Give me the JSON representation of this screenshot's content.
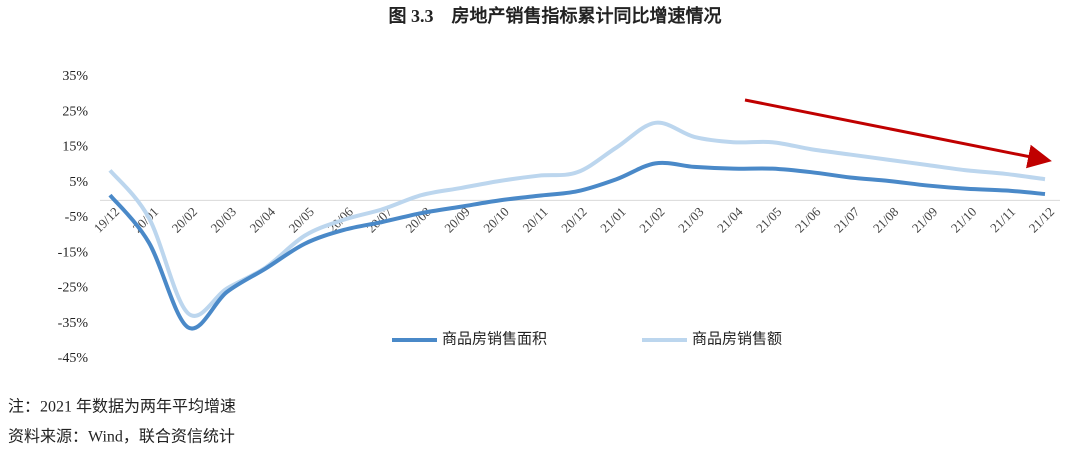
{
  "chart_data": {
    "type": "line",
    "title": "图 3.3　房地产销售指标累计同比增速情况",
    "categories": [
      "19/12",
      "20/01",
      "20/02",
      "20/03",
      "20/04",
      "20/05",
      "20/06",
      "20/07",
      "20/08",
      "20/09",
      "20/10",
      "20/11",
      "20/12",
      "21/01",
      "21/02",
      "21/03",
      "21/04",
      "21/05",
      "21/06",
      "21/07",
      "21/08",
      "21/09",
      "21/10",
      "21/11",
      "21/12"
    ],
    "series": [
      {
        "name": "商品房销售面积",
        "color": "#4a89c8",
        "values": [
          1.5,
          -12,
          -36,
          -26,
          -19.3,
          -12.3,
          -8.4,
          -6.1,
          -3.6,
          -1.8,
          0,
          1.3,
          2.6,
          6,
          10.5,
          9.5,
          9,
          9,
          8,
          6.5,
          5.5,
          4.2,
          3.3,
          2.8,
          1.8
        ]
      },
      {
        "name": "商品房销售额",
        "color": "#bcd6ee",
        "values": [
          8.5,
          -5,
          -32,
          -25,
          -19,
          -10,
          -5.5,
          -2.5,
          1.5,
          3.5,
          5.5,
          7,
          8,
          15,
          22,
          18,
          16.5,
          16.5,
          14.5,
          13,
          11.5,
          10,
          8.5,
          7.5,
          6
        ]
      }
    ],
    "ylim": [
      -45,
      35
    ],
    "yticks": [
      {
        "value": -45,
        "label": "-45%"
      },
      {
        "value": -35,
        "label": "-35%"
      },
      {
        "value": -25,
        "label": "-25%"
      },
      {
        "value": -15,
        "label": "-15%"
      },
      {
        "value": -5,
        "label": "-5%"
      },
      {
        "value": 5,
        "label": "5%"
      },
      {
        "value": 15,
        "label": "15%"
      },
      {
        "value": 25,
        "label": "25%"
      },
      {
        "value": 35,
        "label": "35%"
      }
    ],
    "grid": false,
    "notes": [
      "注：2021 年数据为两年平均增速",
      "资料来源：Wind，联合资信统计"
    ]
  }
}
